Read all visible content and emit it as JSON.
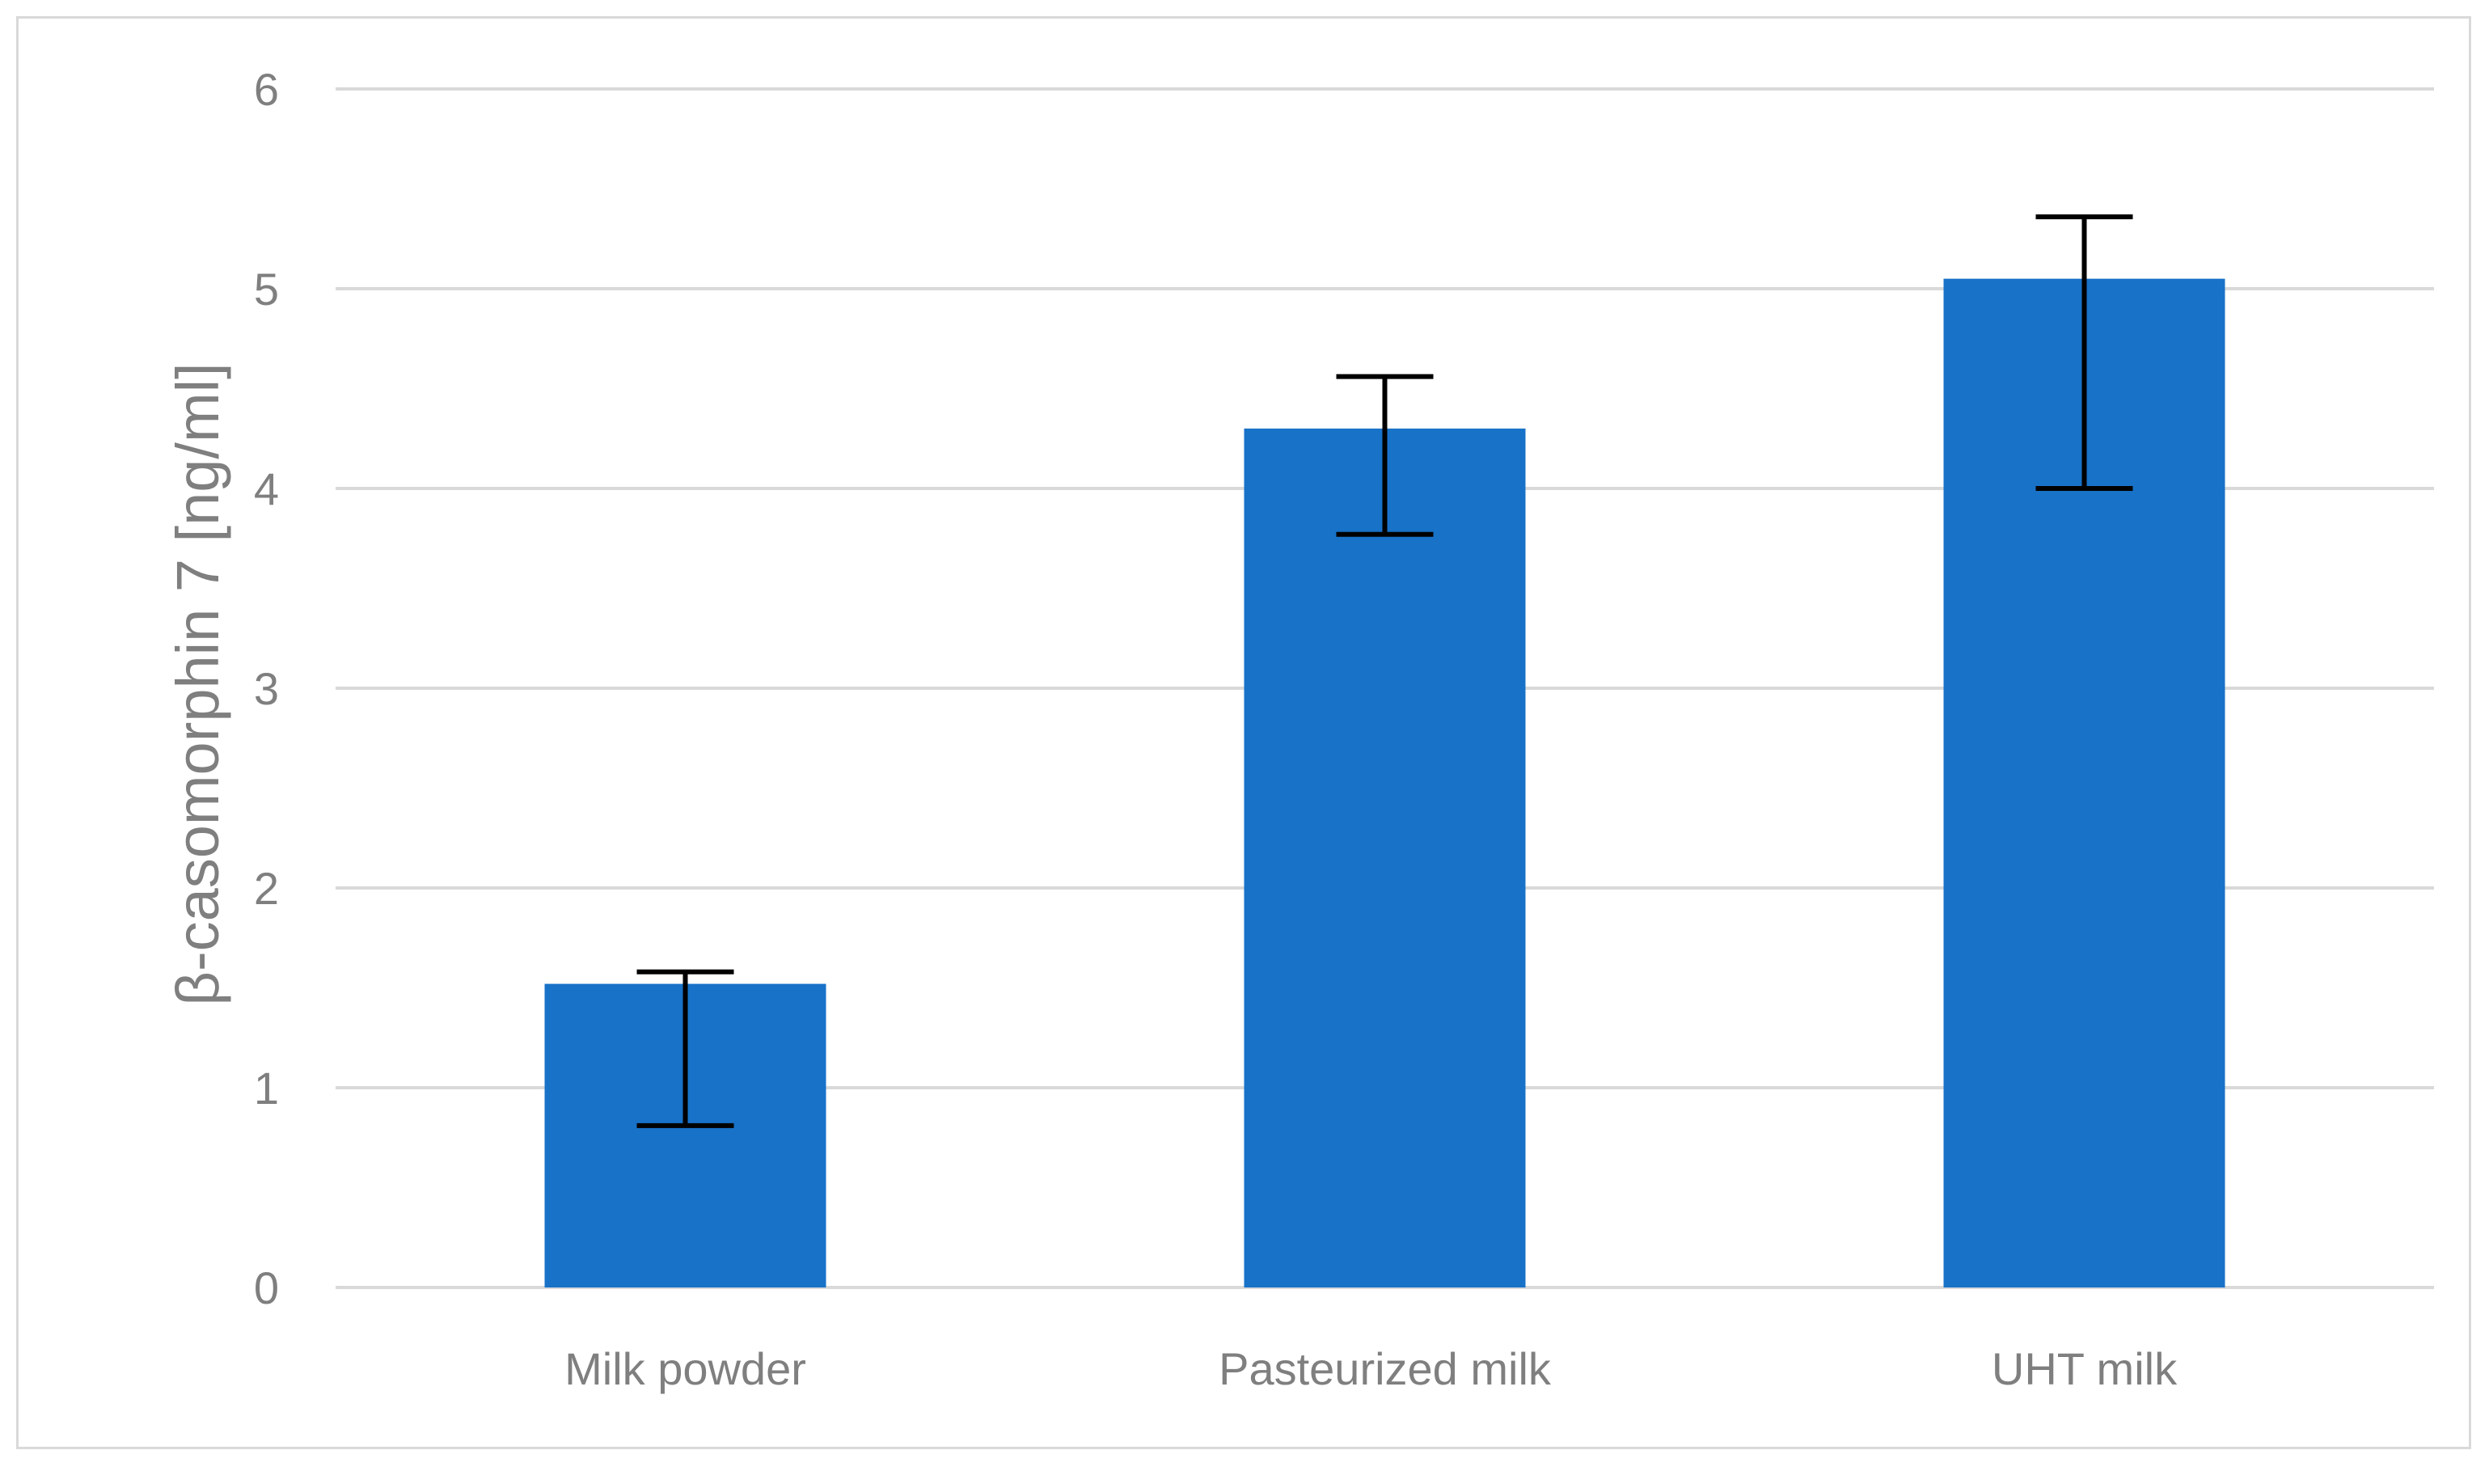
{
  "chart_data": {
    "type": "bar",
    "categories": [
      "Milk powder",
      "Pasteurized milk",
      "UHT milk"
    ],
    "values": [
      1.52,
      4.3,
      5.05
    ],
    "error_low": [
      0.81,
      3.77,
      4.0
    ],
    "error_high": [
      1.58,
      4.56,
      5.36
    ],
    "title": "",
    "xlabel": "",
    "ylabel": "β-casomorphin 7 [ng/ml]",
    "ylim": [
      0,
      6
    ],
    "yticks": [
      "0",
      "1",
      "2",
      "3",
      "4",
      "5",
      "6"
    ],
    "grid": true,
    "legend": "none",
    "bar_color": "#1872C8",
    "error_bar_color": "#000000",
    "grid_color": "#d9d9d9"
  }
}
